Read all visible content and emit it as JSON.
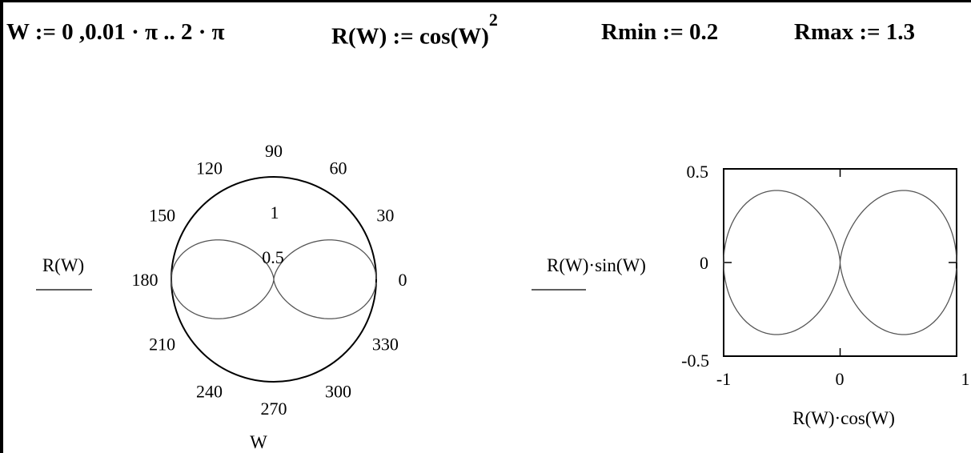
{
  "definitions": {
    "w_range": "W := 0 ,0.01 · π .. 2 · π",
    "r_func_base": "R(W) := cos(W)",
    "r_func_exp": "2",
    "rmin": "Rmin := 0.2",
    "rmax": "Rmax := 1.3"
  },
  "chart_data": [
    {
      "type": "polar",
      "function": "cos(W)^2",
      "theta_range": [
        0,
        6.283185307
      ],
      "theta_step": 0.031415927,
      "r_axis_label": "R(W)",
      "theta_axis_label": "W",
      "r_max": 1,
      "r_tick_labels": [
        "1",
        "0.5"
      ],
      "angle_tick_labels": [
        "0",
        "30",
        "60",
        "90",
        "120",
        "150",
        "180",
        "210",
        "240",
        "270",
        "300",
        "330"
      ],
      "line_color": "#555555"
    },
    {
      "type": "line",
      "function_x": "R(W)·cos(W)",
      "function_y": "R(W)·sin(W)",
      "xlabel": "R(W)·cos(W)",
      "ylabel": "R(W)·sin(W)",
      "xlim": [
        -1,
        1
      ],
      "ylim": [
        -0.5,
        0.5
      ],
      "x_tick_labels": [
        "-1",
        "0",
        "1"
      ],
      "y_tick_labels": [
        "0.5",
        "0",
        "-0.5"
      ],
      "line_color": "#555555"
    }
  ]
}
